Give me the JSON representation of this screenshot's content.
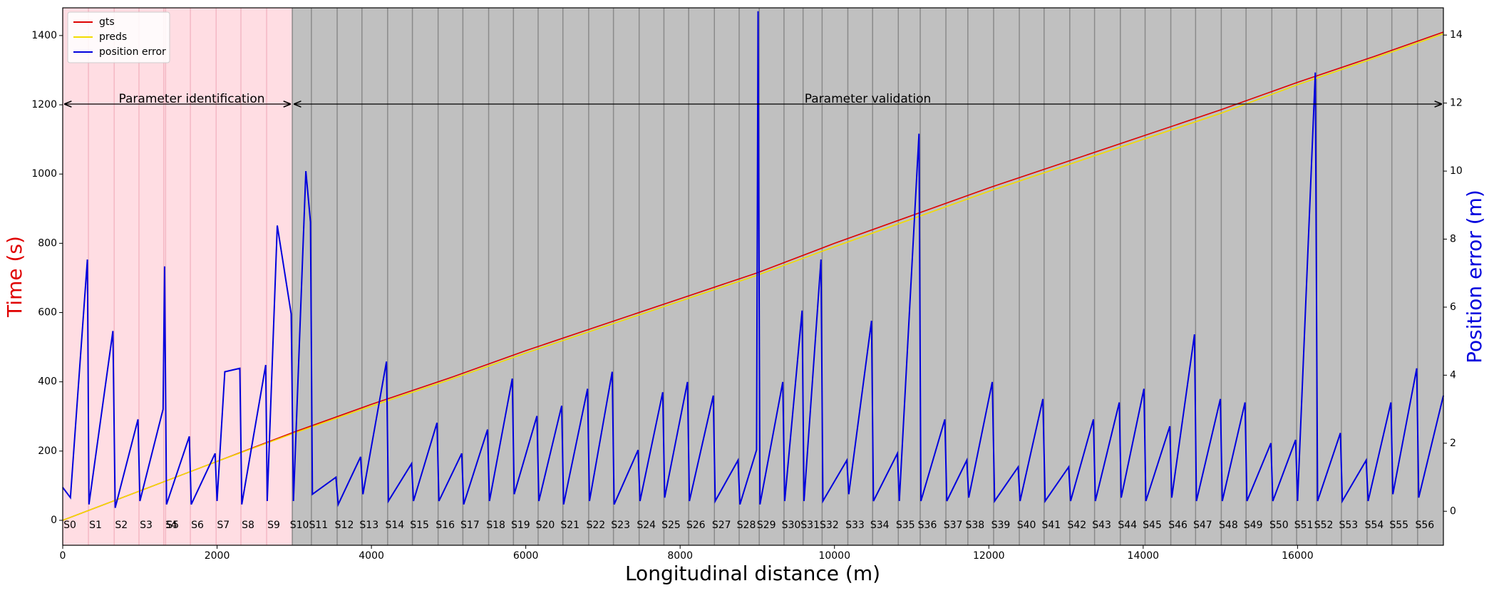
{
  "chart_data": {
    "type": "line",
    "x_label": "Longitudinal distance (m)",
    "y_label": "Time (s)",
    "y_label_color": "#e00000",
    "y2_label": "Position error (m)",
    "y2_label_color": "#0000dd",
    "xlim": [
      0,
      17890
    ],
    "xticks": [
      0,
      2000,
      4000,
      6000,
      8000,
      10000,
      12000,
      14000,
      16000
    ],
    "ylim": [
      -72,
      1480
    ],
    "yticks": [
      0,
      200,
      400,
      600,
      800,
      1000,
      1200,
      1400
    ],
    "y2lim": [
      -1.0,
      14.8
    ],
    "y2ticks": [
      0,
      2,
      4,
      6,
      8,
      10,
      12,
      14
    ],
    "legend": "upper left",
    "regions": [
      {
        "label": "Parameter identification",
        "xlim": [
          0,
          2975
        ],
        "color": "#ffdde3"
      },
      {
        "label": "Parameter validation",
        "xlim": [
          2975,
          17890
        ],
        "color": "#c0c0c0"
      }
    ],
    "segments": {
      "names": [
        "S0",
        "S1",
        "S2",
        "S3",
        "S4",
        "S5",
        "S6",
        "S7",
        "S8",
        "S9",
        "S10",
        "S11",
        "S12",
        "S13",
        "S14",
        "S15",
        "S16",
        "S17",
        "S18",
        "S19",
        "S20",
        "S21",
        "S22",
        "S23",
        "S24",
        "S25",
        "S26",
        "S27",
        "S28",
        "S29",
        "S30",
        "S31",
        "S32",
        "S33",
        "S34",
        "S35",
        "S36",
        "S37",
        "S38",
        "S39",
        "S40",
        "S41",
        "S42",
        "S43",
        "S44",
        "S45",
        "S46",
        "S47",
        "S48",
        "S49",
        "S50",
        "S51",
        "S52",
        "S53",
        "S54",
        "S55",
        "S56"
      ],
      "starts": [
        0,
        333,
        667,
        988,
        1309,
        1333,
        1654,
        1988,
        2309,
        2642,
        2975,
        3222,
        3556,
        3877,
        4210,
        4531,
        4864,
        5185,
        5519,
        5840,
        6160,
        6481,
        6815,
        7136,
        7469,
        7790,
        8111,
        8444,
        8765,
        9025,
        9346,
        9593,
        9840,
        10173,
        10494,
        10827,
        11111,
        11444,
        11728,
        12062,
        12395,
        12716,
        13049,
        13370,
        13704,
        14025,
        14358,
        14679,
        15012,
        15333,
        15667,
        15988,
        16247,
        16568,
        16901,
        17222,
        17556
      ]
    },
    "series": [
      {
        "name": "gts",
        "color": "#dd0000",
        "x": [
          0,
          1000,
          2000,
          3000,
          4000,
          5000,
          6000,
          7000,
          8000,
          9000,
          10000,
          11000,
          12000,
          13000,
          14000,
          15000,
          16000,
          17000,
          17890
        ],
        "values": [
          0,
          85,
          170,
          255,
          335,
          410,
          490,
          565,
          640,
          715,
          800,
          880,
          960,
          1035,
          1110,
          1185,
          1265,
          1340,
          1410
        ]
      },
      {
        "name": "preds",
        "color": "#f2dc00",
        "x": [
          0,
          1000,
          2000,
          3000,
          4000,
          5000,
          6000,
          7000,
          8000,
          9000,
          10000,
          11000,
          12000,
          13000,
          14000,
          15000,
          16000,
          17000,
          17890
        ],
        "values": [
          0,
          85,
          170,
          252,
          330,
          405,
          483,
          558,
          633,
          708,
          790,
          870,
          950,
          1025,
          1100,
          1175,
          1258,
          1335,
          1405
        ]
      },
      {
        "name": "position error",
        "color": "#0000dd",
        "axis": "y2",
        "x": [
          0,
          100,
          320,
          340,
          650,
          680,
          975,
          1000,
          1300,
          1320,
          1345,
          1640,
          1665,
          1975,
          2000,
          2100,
          2295,
          2320,
          2630,
          2650,
          2780,
          2960,
          2990,
          3150,
          3210,
          3235,
          3540,
          3570,
          3860,
          3890,
          4195,
          4220,
          4520,
          4545,
          4850,
          4875,
          5170,
          5195,
          5505,
          5530,
          5825,
          5850,
          6145,
          6170,
          6465,
          6490,
          6800,
          6825,
          7120,
          7145,
          7455,
          7480,
          7775,
          7800,
          8095,
          8120,
          8430,
          8455,
          8750,
          8775,
          8990,
          9010,
          9035,
          9330,
          9355,
          9580,
          9605,
          9825,
          9850,
          10160,
          10185,
          10480,
          10505,
          10815,
          10840,
          11095,
          11120,
          11430,
          11455,
          11715,
          11740,
          12045,
          12075,
          12380,
          12405,
          12700,
          12730,
          13035,
          13060,
          13355,
          13380,
          13690,
          13715,
          14010,
          14035,
          14345,
          14370,
          14665,
          14690,
          15000,
          15025,
          15320,
          15345,
          15655,
          15680,
          15975,
          16000,
          16230,
          16260,
          16555,
          16580,
          16890,
          16915,
          17210,
          17235,
          17545,
          17570,
          17890
        ],
        "values": [
          0.7,
          0.4,
          7.4,
          0.2,
          5.3,
          0.1,
          2.7,
          0.3,
          3.0,
          7.2,
          0.2,
          2.2,
          0.2,
          1.7,
          0.3,
          4.1,
          4.2,
          0.2,
          4.3,
          0.3,
          8.4,
          5.8,
          0.3,
          10.0,
          8.5,
          0.5,
          1.0,
          0.2,
          1.6,
          0.5,
          4.4,
          0.3,
          1.4,
          0.3,
          2.6,
          0.3,
          1.7,
          0.2,
          2.4,
          0.3,
          3.9,
          0.5,
          2.8,
          0.3,
          3.1,
          0.2,
          3.6,
          0.3,
          4.1,
          0.2,
          1.8,
          0.3,
          3.5,
          0.4,
          3.8,
          0.3,
          3.4,
          0.3,
          1.5,
          0.2,
          1.8,
          14.7,
          0.2,
          3.8,
          0.3,
          5.9,
          0.3,
          7.4,
          0.3,
          1.5,
          0.5,
          5.6,
          0.3,
          1.7,
          0.3,
          11.1,
          0.3,
          2.7,
          0.3,
          1.5,
          0.4,
          3.8,
          0.3,
          1.3,
          0.3,
          3.3,
          0.3,
          1.3,
          0.3,
          2.7,
          0.3,
          3.2,
          0.4,
          3.6,
          0.3,
          2.5,
          0.4,
          5.2,
          0.3,
          3.3,
          0.3,
          3.2,
          0.3,
          2.0,
          0.3,
          2.1,
          0.3,
          12.9,
          0.3,
          2.3,
          0.3,
          1.5,
          0.3,
          3.2,
          0.5,
          4.2,
          0.4,
          3.4
        ]
      }
    ]
  }
}
